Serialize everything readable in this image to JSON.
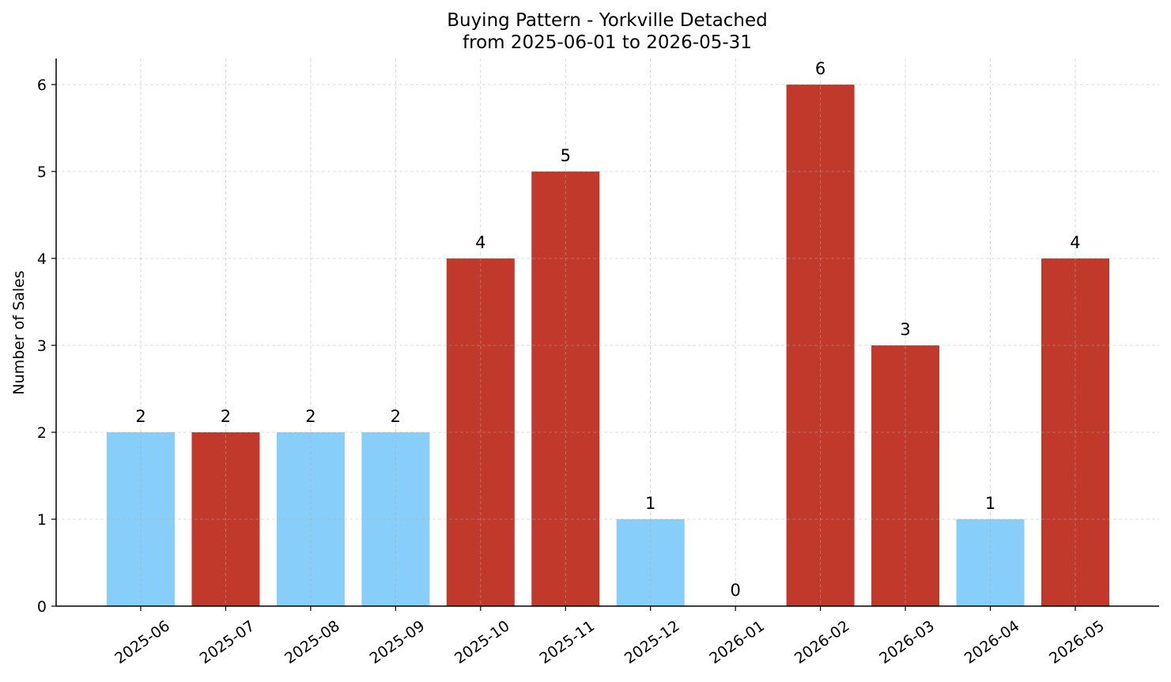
{
  "chart_data": {
    "type": "bar",
    "title": "Buying Pattern - Yorkville Detached",
    "subtitle": "from 2025-06-01 to 2026-05-31",
    "xlabel": "",
    "ylabel": "Number of Sales",
    "categories": [
      "2025-06",
      "2025-07",
      "2025-08",
      "2025-09",
      "2025-10",
      "2025-11",
      "2025-12",
      "2026-01",
      "2026-02",
      "2026-03",
      "2026-04",
      "2026-05"
    ],
    "values": [
      2,
      2,
      2,
      2,
      4,
      5,
      1,
      0,
      6,
      3,
      1,
      4
    ],
    "bar_colors": [
      "#87CEFA",
      "#C0392B",
      "#87CEFA",
      "#87CEFA",
      "#C0392B",
      "#C0392B",
      "#87CEFA",
      "#87CEFA",
      "#C0392B",
      "#C0392B",
      "#87CEFA",
      "#C0392B"
    ],
    "yticks": [
      0,
      1,
      2,
      3,
      4,
      5,
      6
    ],
    "ylim": [
      0,
      6.3
    ],
    "grid": true,
    "legend": "none",
    "data_labels": true
  }
}
